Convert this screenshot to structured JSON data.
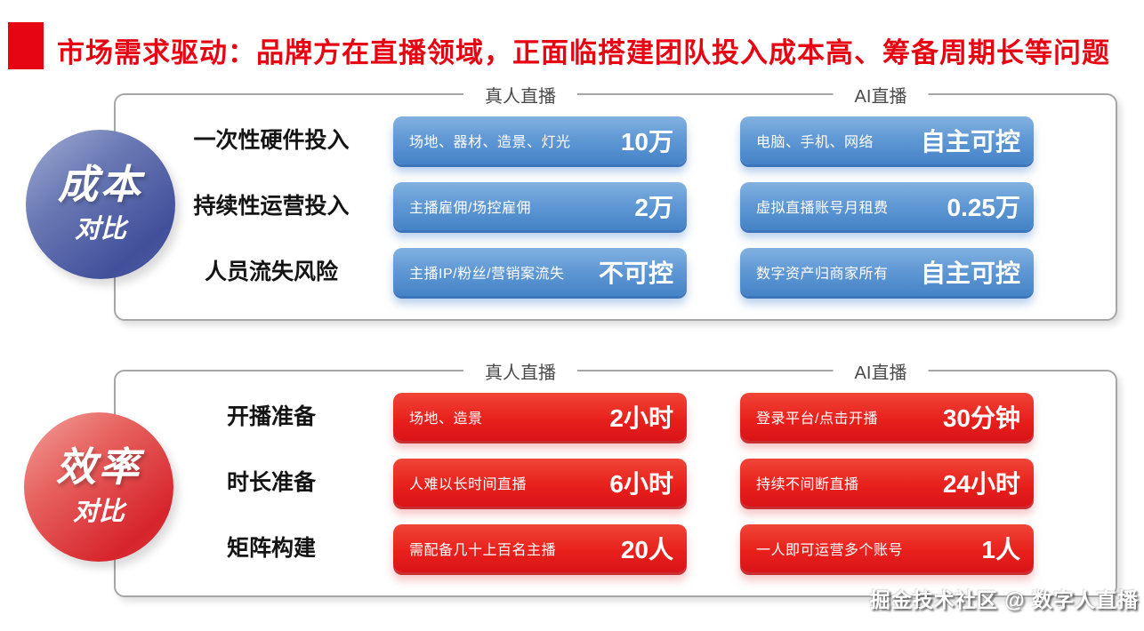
{
  "title": "市场需求驱动：品牌方在直播领域，正面临搭建团队投入成本高、筹备周期长等问题",
  "watermark": "掘金技术社区 @ 数字人直播",
  "colors": {
    "title_red": "#e60613",
    "blue_pill": "#5e97d4",
    "blue_circle": "#42509b",
    "red_pill": "#e8211d",
    "red_circle": "#d6242c",
    "panel_border": "#a6a6a6"
  },
  "panels": [
    {
      "id": "cost",
      "theme": "blue",
      "circle": {
        "line1": "成本",
        "line2": "对比"
      },
      "columns": [
        "真人直播",
        "AI直播"
      ],
      "rows": [
        {
          "label": "一次性硬件投入",
          "left": {
            "desc": "场地、器材、造景、灯光",
            "value": "10万"
          },
          "right": {
            "desc": "电脑、手机、网络",
            "value": "自主可控"
          }
        },
        {
          "label": "持续性运营投入",
          "left": {
            "desc": "主播雇佣/场控雇佣",
            "value": "2万"
          },
          "right": {
            "desc": "虚拟直播账号月租费",
            "value": "0.25万"
          }
        },
        {
          "label": "人员流失风险",
          "left": {
            "desc": "主播IP/粉丝/营销案流失",
            "value": "不可控"
          },
          "right": {
            "desc": "数字资产归商家所有",
            "value": "自主可控"
          }
        }
      ]
    },
    {
      "id": "efficiency",
      "theme": "red",
      "circle": {
        "line1": "效率",
        "line2": "对比"
      },
      "columns": [
        "真人直播",
        "AI直播"
      ],
      "rows": [
        {
          "label": "开播准备",
          "left": {
            "desc": "场地、造景",
            "value": "2小时"
          },
          "right": {
            "desc": "登录平台/点击开播",
            "value": "30分钟"
          }
        },
        {
          "label": "时长准备",
          "left": {
            "desc": "人难以长时间直播",
            "value": "6小时"
          },
          "right": {
            "desc": "持续不间断直播",
            "value": "24小时"
          }
        },
        {
          "label": "矩阵构建",
          "left": {
            "desc": "需配备几十上百名主播",
            "value": "20人"
          },
          "right": {
            "desc": "一人即可运营多个账号",
            "value": "1人"
          }
        }
      ]
    }
  ]
}
